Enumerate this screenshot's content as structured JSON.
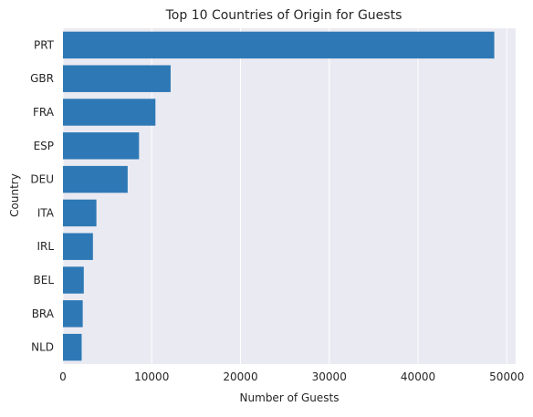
{
  "chart_data": {
    "type": "bar",
    "orientation": "horizontal",
    "title": "Top 10 Countries of Origin for Guests",
    "xlabel": "Number of Guests",
    "ylabel": "Country",
    "categories": [
      "PRT",
      "GBR",
      "FRA",
      "ESP",
      "DEU",
      "ITA",
      "IRL",
      "BEL",
      "BRA",
      "NLD"
    ],
    "values": [
      48590,
      12129,
      10415,
      8568,
      7287,
      3766,
      3375,
      2342,
      2224,
      2104
    ],
    "xlim": [
      0,
      51000
    ],
    "xticks": [
      0,
      10000,
      20000,
      30000,
      40000,
      50000
    ],
    "xtick_labels": [
      "0",
      "10000",
      "20000",
      "30000",
      "40000",
      "50000"
    ],
    "grid": "vertical",
    "colors": {
      "bar": "#2e79b5",
      "plot_background": "#eaeaf2",
      "grid": "#ffffff",
      "text": "#262626"
    }
  }
}
